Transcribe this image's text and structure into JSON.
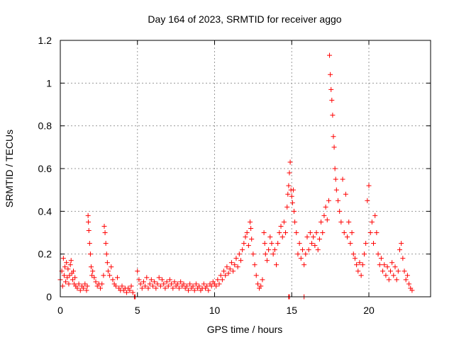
{
  "chart_data": {
    "type": "scatter",
    "title": "Day 164 of 2023, SRMTID for receiver aggo",
    "xlabel": "GPS time / hours",
    "ylabel": "SRMTID / TECUs",
    "xlim": [
      0,
      24
    ],
    "ylim": [
      0,
      1.2
    ],
    "x_ticks": [
      0,
      5,
      10,
      15,
      20
    ],
    "y_ticks": [
      0,
      0.2,
      0.4,
      0.6,
      0.8,
      1,
      1.2
    ],
    "x_tick_labels": [
      "0",
      "5",
      "10",
      "15",
      "20"
    ],
    "y_tick_labels": [
      "0",
      "0.2",
      "0.4",
      "0.6",
      "0.8",
      "1",
      "1.2"
    ],
    "grid": true,
    "marker": "+",
    "color": "#ff0000",
    "series": [
      {
        "name": "SRMTID",
        "points": [
          [
            0.0,
            0.08
          ],
          [
            0.1,
            0.12
          ],
          [
            0.15,
            0.05
          ],
          [
            0.2,
            0.18
          ],
          [
            0.25,
            0.1
          ],
          [
            0.3,
            0.14
          ],
          [
            0.35,
            0.07
          ],
          [
            0.4,
            0.16
          ],
          [
            0.45,
            0.09
          ],
          [
            0.5,
            0.13
          ],
          [
            0.55,
            0.06
          ],
          [
            0.6,
            0.1
          ],
          [
            0.65,
            0.15
          ],
          [
            0.7,
            0.17
          ],
          [
            0.75,
            0.11
          ],
          [
            0.8,
            0.08
          ],
          [
            0.85,
            0.12
          ],
          [
            0.9,
            0.06
          ],
          [
            0.95,
            0.09
          ],
          [
            1.0,
            0.05
          ],
          [
            1.1,
            0.04
          ],
          [
            1.2,
            0.06
          ],
          [
            1.3,
            0.03
          ],
          [
            1.4,
            0.05
          ],
          [
            1.5,
            0.04
          ],
          [
            1.6,
            0.06
          ],
          [
            1.7,
            0.03
          ],
          [
            1.75,
            0.05
          ],
          [
            1.8,
            0.38
          ],
          [
            1.82,
            0.35
          ],
          [
            1.85,
            0.31
          ],
          [
            1.9,
            0.25
          ],
          [
            1.95,
            0.2
          ],
          [
            2.0,
            0.14
          ],
          [
            2.05,
            0.1
          ],
          [
            2.1,
            0.12
          ],
          [
            2.2,
            0.09
          ],
          [
            2.3,
            0.07
          ],
          [
            2.4,
            0.05
          ],
          [
            2.5,
            0.06
          ],
          [
            2.6,
            0.04
          ],
          [
            2.7,
            0.06
          ],
          [
            2.8,
            0.1
          ],
          [
            2.85,
            0.33
          ],
          [
            2.9,
            0.3
          ],
          [
            2.95,
            0.25
          ],
          [
            3.0,
            0.2
          ],
          [
            3.05,
            0.16
          ],
          [
            3.1,
            0.12
          ],
          [
            3.2,
            0.1
          ],
          [
            3.3,
            0.14
          ],
          [
            3.4,
            0.08
          ],
          [
            3.5,
            0.06
          ],
          [
            3.6,
            0.05
          ],
          [
            3.7,
            0.09
          ],
          [
            3.8,
            0.04
          ],
          [
            3.9,
            0.03
          ],
          [
            4.0,
            0.05
          ],
          [
            4.1,
            0.03
          ],
          [
            4.2,
            0.04
          ],
          [
            4.3,
            0.02
          ],
          [
            4.4,
            0.04
          ],
          [
            4.5,
            0.03
          ],
          [
            4.6,
            0.05
          ],
          [
            4.7,
            0.02
          ],
          [
            4.8,
            0.0
          ],
          [
            4.85,
            0.0
          ],
          [
            5.0,
            0.12
          ],
          [
            5.1,
            0.08
          ],
          [
            5.2,
            0.06
          ],
          [
            5.3,
            0.04
          ],
          [
            5.4,
            0.07
          ],
          [
            5.5,
            0.05
          ],
          [
            5.6,
            0.09
          ],
          [
            5.7,
            0.04
          ],
          [
            5.8,
            0.06
          ],
          [
            5.9,
            0.08
          ],
          [
            6.0,
            0.05
          ],
          [
            6.1,
            0.07
          ],
          [
            6.2,
            0.04
          ],
          [
            6.3,
            0.06
          ],
          [
            6.4,
            0.09
          ],
          [
            6.5,
            0.05
          ],
          [
            6.6,
            0.08
          ],
          [
            6.7,
            0.06
          ],
          [
            6.8,
            0.04
          ],
          [
            6.9,
            0.07
          ],
          [
            7.0,
            0.05
          ],
          [
            7.1,
            0.08
          ],
          [
            7.2,
            0.06
          ],
          [
            7.3,
            0.04
          ],
          [
            7.4,
            0.07
          ],
          [
            7.5,
            0.05
          ],
          [
            7.6,
            0.06
          ],
          [
            7.7,
            0.04
          ],
          [
            7.8,
            0.07
          ],
          [
            7.9,
            0.05
          ],
          [
            8.0,
            0.06
          ],
          [
            8.1,
            0.04
          ],
          [
            8.2,
            0.05
          ],
          [
            8.3,
            0.03
          ],
          [
            8.4,
            0.06
          ],
          [
            8.5,
            0.04
          ],
          [
            8.6,
            0.05
          ],
          [
            8.7,
            0.03
          ],
          [
            8.8,
            0.06
          ],
          [
            8.9,
            0.04
          ],
          [
            9.0,
            0.05
          ],
          [
            9.1,
            0.03
          ],
          [
            9.2,
            0.04
          ],
          [
            9.3,
            0.06
          ],
          [
            9.4,
            0.04
          ],
          [
            9.5,
            0.05
          ],
          [
            9.6,
            0.03
          ],
          [
            9.7,
            0.06
          ],
          [
            9.8,
            0.05
          ],
          [
            9.9,
            0.07
          ],
          [
            10.0,
            0.06
          ],
          [
            10.1,
            0.05
          ],
          [
            10.2,
            0.08
          ],
          [
            10.3,
            0.06
          ],
          [
            10.4,
            0.1
          ],
          [
            10.5,
            0.08
          ],
          [
            10.6,
            0.12
          ],
          [
            10.7,
            0.1
          ],
          [
            10.8,
            0.14
          ],
          [
            10.9,
            0.11
          ],
          [
            11.0,
            0.13
          ],
          [
            11.1,
            0.16
          ],
          [
            11.2,
            0.12
          ],
          [
            11.3,
            0.15
          ],
          [
            11.4,
            0.18
          ],
          [
            11.5,
            0.14
          ],
          [
            11.6,
            0.2
          ],
          [
            11.7,
            0.17
          ],
          [
            11.8,
            0.22
          ],
          [
            11.9,
            0.25
          ],
          [
            12.0,
            0.28
          ],
          [
            12.1,
            0.3
          ],
          [
            12.2,
            0.24
          ],
          [
            12.3,
            0.35
          ],
          [
            12.35,
            0.32
          ],
          [
            12.4,
            0.27
          ],
          [
            12.5,
            0.2
          ],
          [
            12.6,
            0.15
          ],
          [
            12.7,
            0.1
          ],
          [
            12.8,
            0.06
          ],
          [
            12.9,
            0.04
          ],
          [
            13.0,
            0.05
          ],
          [
            13.1,
            0.08
          ],
          [
            13.2,
            0.3
          ],
          [
            13.25,
            0.25
          ],
          [
            13.3,
            0.2
          ],
          [
            13.4,
            0.17
          ],
          [
            13.5,
            0.22
          ],
          [
            13.6,
            0.28
          ],
          [
            13.7,
            0.25
          ],
          [
            13.8,
            0.2
          ],
          [
            13.9,
            0.22
          ],
          [
            14.0,
            0.15
          ],
          [
            14.1,
            0.25
          ],
          [
            14.2,
            0.3
          ],
          [
            14.3,
            0.33
          ],
          [
            14.4,
            0.28
          ],
          [
            14.5,
            0.35
          ],
          [
            14.6,
            0.3
          ],
          [
            14.7,
            0.42
          ],
          [
            14.75,
            0.48
          ],
          [
            14.8,
            0.52
          ],
          [
            14.85,
            0.58
          ],
          [
            14.9,
            0.63
          ],
          [
            14.95,
            0.5
          ],
          [
            15.0,
            0.47
          ],
          [
            15.05,
            0.44
          ],
          [
            15.1,
            0.5
          ],
          [
            15.15,
            0.4
          ],
          [
            15.2,
            0.35
          ],
          [
            15.3,
            0.3
          ],
          [
            15.4,
            0.2
          ],
          [
            15.5,
            0.25
          ],
          [
            15.6,
            0.18
          ],
          [
            15.7,
            0.22
          ],
          [
            15.8,
            0.15
          ],
          [
            15.9,
            0.2
          ],
          [
            16.0,
            0.28
          ],
          [
            16.1,
            0.22
          ],
          [
            16.2,
            0.3
          ],
          [
            16.3,
            0.25
          ],
          [
            16.4,
            0.28
          ],
          [
            16.5,
            0.24
          ],
          [
            16.6,
            0.3
          ],
          [
            16.7,
            0.22
          ],
          [
            16.8,
            0.27
          ],
          [
            16.9,
            0.35
          ],
          [
            17.0,
            0.3
          ],
          [
            17.1,
            0.38
          ],
          [
            17.2,
            0.42
          ],
          [
            17.3,
            0.36
          ],
          [
            17.4,
            0.45
          ],
          [
            17.45,
            1.13
          ],
          [
            17.5,
            1.04
          ],
          [
            17.55,
            0.97
          ],
          [
            17.6,
            0.92
          ],
          [
            17.65,
            0.85
          ],
          [
            17.7,
            0.75
          ],
          [
            17.75,
            0.7
          ],
          [
            17.8,
            0.6
          ],
          [
            17.85,
            0.55
          ],
          [
            17.9,
            0.5
          ],
          [
            18.0,
            0.45
          ],
          [
            18.1,
            0.4
          ],
          [
            18.2,
            0.35
          ],
          [
            18.3,
            0.55
          ],
          [
            18.4,
            0.3
          ],
          [
            18.5,
            0.48
          ],
          [
            18.6,
            0.28
          ],
          [
            18.7,
            0.35
          ],
          [
            18.8,
            0.25
          ],
          [
            18.9,
            0.3
          ],
          [
            19.0,
            0.2
          ],
          [
            19.1,
            0.18
          ],
          [
            19.2,
            0.15
          ],
          [
            19.3,
            0.12
          ],
          [
            19.4,
            0.16
          ],
          [
            19.5,
            0.1
          ],
          [
            19.6,
            0.15
          ],
          [
            19.7,
            0.2
          ],
          [
            19.8,
            0.25
          ],
          [
            19.9,
            0.45
          ],
          [
            20.0,
            0.52
          ],
          [
            20.1,
            0.3
          ],
          [
            20.2,
            0.35
          ],
          [
            20.3,
            0.25
          ],
          [
            20.4,
            0.38
          ],
          [
            20.5,
            0.3
          ],
          [
            20.6,
            0.2
          ],
          [
            20.7,
            0.15
          ],
          [
            20.8,
            0.18
          ],
          [
            20.9,
            0.12
          ],
          [
            21.0,
            0.15
          ],
          [
            21.1,
            0.1
          ],
          [
            21.2,
            0.14
          ],
          [
            21.3,
            0.08
          ],
          [
            21.4,
            0.12
          ],
          [
            21.5,
            0.16
          ],
          [
            21.6,
            0.1
          ],
          [
            21.7,
            0.14
          ],
          [
            21.8,
            0.08
          ],
          [
            21.9,
            0.12
          ],
          [
            22.0,
            0.22
          ],
          [
            22.1,
            0.25
          ],
          [
            22.2,
            0.18
          ],
          [
            22.3,
            0.12
          ],
          [
            22.4,
            0.08
          ],
          [
            22.5,
            0.1
          ],
          [
            22.6,
            0.06
          ],
          [
            22.7,
            0.04
          ],
          [
            22.8,
            0.03
          ],
          [
            14.8,
            0.0
          ],
          [
            14.85,
            0.0
          ],
          [
            15.8,
            0.0
          ]
        ]
      }
    ]
  }
}
